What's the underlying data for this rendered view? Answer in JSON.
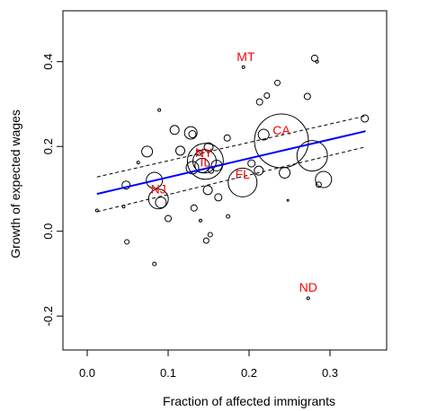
{
  "chart_data": {
    "type": "scatter",
    "title": "",
    "xlabel": "Fraction of affected immigrants",
    "ylabel": "Growth of expected wages",
    "xlim": [
      -0.03,
      0.37
    ],
    "ylim": [
      -0.28,
      0.52
    ],
    "xticks": [
      0.0,
      0.1,
      0.2,
      0.3
    ],
    "xtick_labels": [
      "0.0",
      "0.1",
      "0.2",
      "0.3"
    ],
    "yticks": [
      -0.2,
      0.0,
      0.2,
      0.4
    ],
    "ytick_labels": [
      "-0.2",
      "0.0",
      "0.2",
      "0.4"
    ],
    "grid": false,
    "legend": "none",
    "colors": {
      "points": "#000000",
      "fit_line": "#0000ff",
      "ci_lines": "#000000",
      "labels": "#ff0000"
    },
    "fit_line": {
      "x": [
        0.012,
        0.344
      ],
      "y": [
        0.088,
        0.236
      ]
    },
    "ci_upper": {
      "x": [
        0.012,
        0.344
      ],
      "y": [
        0.128,
        0.272
      ]
    },
    "ci_lower": {
      "x": [
        0.012,
        0.344
      ],
      "y": [
        0.046,
        0.199
      ]
    },
    "points": [
      {
        "x": 0.012,
        "y": 0.049,
        "r": 1.5
      },
      {
        "x": 0.045,
        "y": 0.058,
        "r": 1.5
      },
      {
        "x": 0.048,
        "y": 0.109,
        "r": 4.5
      },
      {
        "x": 0.049,
        "y": -0.025,
        "r": 2.5
      },
      {
        "x": 0.063,
        "y": 0.162,
        "r": 1.5
      },
      {
        "x": 0.074,
        "y": 0.188,
        "r": 6
      },
      {
        "x": 0.083,
        "y": 0.12,
        "r": 9
      },
      {
        "x": 0.083,
        "y": -0.077,
        "r": 2
      },
      {
        "x": 0.088,
        "y": 0.076,
        "r": 11
      },
      {
        "x": 0.089,
        "y": 0.286,
        "r": 1.5
      },
      {
        "x": 0.091,
        "y": 0.068,
        "r": 6
      },
      {
        "x": 0.1,
        "y": 0.03,
        "r": 3.5
      },
      {
        "x": 0.108,
        "y": 0.239,
        "r": 5
      },
      {
        "x": 0.115,
        "y": 0.19,
        "r": 5
      },
      {
        "x": 0.128,
        "y": 0.232,
        "r": 7
      },
      {
        "x": 0.13,
        "y": 0.229,
        "r": 4
      },
      {
        "x": 0.13,
        "y": 0.15,
        "r": 7
      },
      {
        "x": 0.132,
        "y": 0.055,
        "r": 3.5
      },
      {
        "x": 0.138,
        "y": 0.185,
        "r": 3
      },
      {
        "x": 0.14,
        "y": 0.025,
        "r": 1.5
      },
      {
        "x": 0.142,
        "y": 0.155,
        "r": 8
      },
      {
        "x": 0.145,
        "y": 0.165,
        "r": 13
      },
      {
        "x": 0.146,
        "y": 0.165,
        "r": 20
      },
      {
        "x": 0.147,
        "y": -0.022,
        "r": 3
      },
      {
        "x": 0.149,
        "y": 0.097,
        "r": 5
      },
      {
        "x": 0.15,
        "y": 0.198,
        "r": 5
      },
      {
        "x": 0.152,
        "y": -0.008,
        "r": 2.5
      },
      {
        "x": 0.153,
        "y": 0.143,
        "r": 3
      },
      {
        "x": 0.16,
        "y": 0.155,
        "r": 6
      },
      {
        "x": 0.162,
        "y": 0.08,
        "r": 4
      },
      {
        "x": 0.173,
        "y": 0.22,
        "r": 3.5
      },
      {
        "x": 0.174,
        "y": 0.035,
        "r": 2
      },
      {
        "x": 0.192,
        "y": 0.115,
        "r": 16
      },
      {
        "x": 0.193,
        "y": 0.387,
        "r": 1.5
      },
      {
        "x": 0.203,
        "y": 0.16,
        "r": 4
      },
      {
        "x": 0.212,
        "y": 0.143,
        "r": 5
      },
      {
        "x": 0.213,
        "y": 0.305,
        "r": 3.5
      },
      {
        "x": 0.218,
        "y": 0.228,
        "r": 6
      },
      {
        "x": 0.222,
        "y": 0.32,
        "r": 3
      },
      {
        "x": 0.235,
        "y": 0.35,
        "r": 3
      },
      {
        "x": 0.24,
        "y": 0.213,
        "r": 30
      },
      {
        "x": 0.244,
        "y": 0.138,
        "r": 6
      },
      {
        "x": 0.248,
        "y": 0.073,
        "r": 1
      },
      {
        "x": 0.272,
        "y": 0.318,
        "r": 3.5
      },
      {
        "x": 0.273,
        "y": -0.158,
        "r": 1.5
      },
      {
        "x": 0.278,
        "y": 0.178,
        "r": 17
      },
      {
        "x": 0.281,
        "y": 0.408,
        "r": 3.5
      },
      {
        "x": 0.284,
        "y": 0.4,
        "r": 1.5
      },
      {
        "x": 0.286,
        "y": 0.11,
        "r": 3
      },
      {
        "x": 0.292,
        "y": 0.122,
        "r": 9
      },
      {
        "x": 0.343,
        "y": 0.266,
        "r": 4
      }
    ],
    "annotations": [
      {
        "text": "MT",
        "x": 0.196,
        "y": 0.412
      },
      {
        "text": "CA",
        "x": 0.24,
        "y": 0.238
      },
      {
        "text": "NY",
        "x": 0.144,
        "y": 0.186
      },
      {
        "text": "IL",
        "x": 0.146,
        "y": 0.163
      },
      {
        "text": "FL",
        "x": 0.192,
        "y": 0.135
      },
      {
        "text": "NJ",
        "x": 0.088,
        "y": 0.1
      },
      {
        "text": "ND",
        "x": 0.273,
        "y": -0.132
      }
    ]
  }
}
